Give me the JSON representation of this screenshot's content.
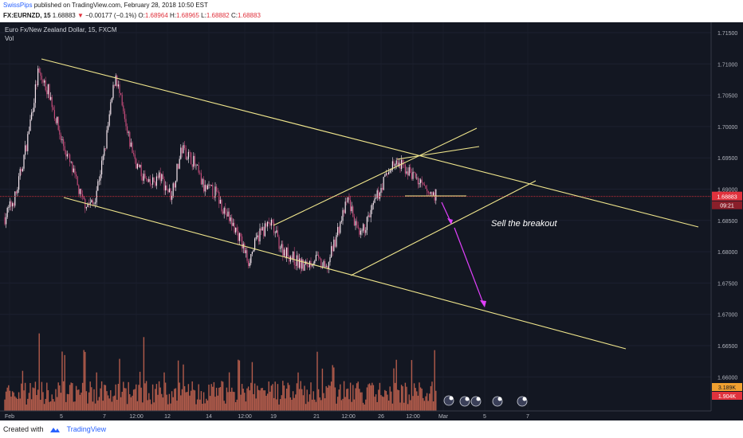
{
  "header": {
    "author": "SwissPips",
    "published_text": "published on TradingView.com, February 28, 2018 10:50 EST",
    "symbol": "FX:EURNZD, 15",
    "last": "1.68883",
    "change": "−0.00177 (−0.1%)",
    "o_label": "O:",
    "o_value": "1.68964",
    "h_label": "H:",
    "h_value": "1.68965",
    "l_label": "L:",
    "l_value": "1.68882",
    "c_label": "C:",
    "c_value": "1.68883"
  },
  "legend": {
    "title": "Euro Fx/New Zealand Dollar, 15, FXCM",
    "indicator": "Vol"
  },
  "annotation": "Sell the breakout",
  "price_label": "1.68883",
  "countdown_label": "09:21",
  "vol_label_1": "3.189K",
  "vol_label_2": "1.904K",
  "footer": {
    "created_with": "Created with",
    "brand": "TradingView"
  },
  "colors": {
    "background": "#131722",
    "trendline": "#f0e68c",
    "arrow": "#e040fb",
    "price_line": "#e0323d",
    "volume": "#e8735a"
  },
  "chart_data": {
    "type": "line",
    "title": "Euro Fx/New Zealand Dollar, 15, FXCM",
    "symbol": "FX:EURNZD",
    "timeframe": "15",
    "x_ticks": [
      "Feb",
      "5",
      "7",
      "12:00",
      "12",
      "14",
      "12:00",
      "19",
      "21",
      "12:00",
      "26",
      "12:00",
      "Mar",
      "5",
      "7"
    ],
    "y_ticks": [
      1.715,
      1.71,
      1.705,
      1.7,
      1.695,
      1.69,
      1.685,
      1.68,
      1.675,
      1.67,
      1.665,
      1.66
    ],
    "ylim": [
      1.6565,
      1.7175
    ],
    "last_price": 1.68883,
    "series": [
      {
        "values": [
          1.6855,
          1.689,
          1.6975,
          1.7085,
          1.7055,
          1.6985,
          1.6935,
          1.688,
          1.6875,
          1.696,
          1.7085,
          1.699,
          1.6935,
          1.6905,
          1.692,
          1.689,
          1.6965,
          1.6945,
          1.69,
          1.6895,
          1.686,
          1.683,
          1.6785,
          1.683,
          1.6845,
          1.6805,
          1.679,
          1.6775,
          1.679,
          1.677,
          1.683,
          1.6885,
          1.682,
          1.686,
          1.6905,
          1.694,
          1.6935,
          1.692,
          1.6895,
          1.689
        ]
      }
    ],
    "annotations": [
      "Sell the breakout"
    ]
  }
}
